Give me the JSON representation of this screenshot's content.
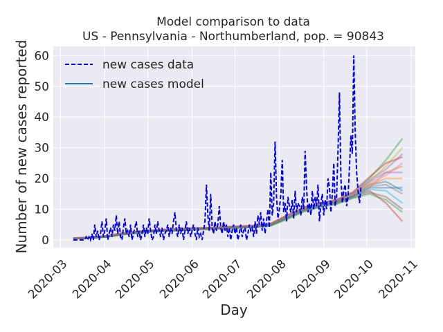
{
  "chart_data": {
    "type": "line",
    "title_line1": "Model comparison to data",
    "title_line2": "US - Pennsylvania - Northumberland, pop. = 90843",
    "xlabel": "Day",
    "ylabel": "Number of new cases reported",
    "x_tick_labels": [
      "2020-03",
      "2020-04",
      "2020-05",
      "2020-06",
      "2020-07",
      "2020-08",
      "2020-09",
      "2020-10",
      "2020-11"
    ],
    "y_ticks": [
      0,
      10,
      20,
      30,
      40,
      50,
      60
    ],
    "xlim": [
      "2020-02-25",
      "2020-11-04"
    ],
    "ylim": [
      -2.5,
      63
    ],
    "grid": true,
    "legend_position": "top-left",
    "legend": [
      {
        "label": "new cases data",
        "style": "dashed",
        "color": "#0000ee"
      },
      {
        "label": "new cases model",
        "style": "solid",
        "color": "#1f77b4"
      }
    ],
    "data_series": {
      "name": "new cases data",
      "start_date": "2020-03-10",
      "values": [
        0,
        0,
        0,
        0,
        0,
        0,
        0,
        0,
        0,
        1,
        0,
        1,
        0,
        2,
        0,
        5,
        1,
        3,
        0,
        2,
        6,
        1,
        3,
        7,
        0,
        2,
        4,
        1,
        5,
        3,
        8,
        2,
        6,
        1,
        0,
        4,
        7,
        2,
        3,
        1,
        5,
        0,
        2,
        4,
        6,
        1,
        3,
        0,
        2,
        5,
        1,
        4,
        2,
        7,
        3,
        0,
        1,
        5,
        2,
        6,
        3,
        1,
        4,
        0,
        2,
        3,
        5,
        1,
        4,
        2,
        6,
        9,
        3,
        1,
        5,
        2,
        4,
        0,
        3,
        6,
        2,
        4,
        1,
        3,
        5,
        2,
        0,
        4,
        1,
        2,
        0,
        3,
        6,
        18,
        8,
        3,
        15,
        4,
        2,
        6,
        3,
        5,
        11,
        4,
        2,
        6,
        3,
        5,
        1,
        4,
        0,
        3,
        5,
        2,
        4,
        0,
        2,
        5,
        1,
        3,
        4,
        0,
        2,
        5,
        3,
        4,
        1,
        6,
        2,
        8,
        5,
        9,
        3,
        7,
        2,
        6,
        10,
        4,
        22,
        8,
        12,
        32,
        14,
        7,
        10,
        15,
        26,
        9,
        12,
        6,
        14,
        11,
        9,
        13,
        7,
        16,
        9,
        12,
        11,
        8,
        14,
        10,
        29,
        17,
        9,
        12,
        8,
        16,
        10,
        14,
        11,
        18,
        6,
        12,
        15,
        8,
        13,
        10,
        20,
        17,
        9,
        15,
        25,
        11,
        14,
        30,
        48,
        20,
        12,
        16,
        18,
        11,
        14,
        24,
        34,
        28,
        60,
        35,
        22,
        16,
        12,
        17
      ]
    },
    "model_series": [
      {
        "color": "#1f77b4",
        "values": [
          0.5,
          0.7,
          1.2,
          2.0,
          2.6,
          3.0,
          3.3,
          3.6,
          3.8,
          4.0,
          4.2,
          4.4,
          5.0,
          7.5,
          10.0,
          11.5,
          12.5,
          14.5,
          18.0,
          19.0,
          16.0
        ]
      },
      {
        "color": "#ff7f0e",
        "values": [
          0.4,
          0.6,
          1.0,
          1.7,
          2.3,
          2.7,
          3.0,
          3.3,
          3.5,
          3.7,
          4.0,
          4.3,
          4.8,
          7.0,
          9.5,
          11.0,
          12.0,
          14.0,
          17.0,
          22.0,
          24.0
        ]
      },
      {
        "color": "#2ca02c",
        "values": [
          0.6,
          0.8,
          1.3,
          2.2,
          2.8,
          3.2,
          3.5,
          3.7,
          3.9,
          4.1,
          4.4,
          4.6,
          5.3,
          8.0,
          10.5,
          12.0,
          13.0,
          15.5,
          20.0,
          26.0,
          33.0
        ]
      },
      {
        "color": "#d62728",
        "values": [
          0.5,
          0.6,
          1.1,
          1.9,
          2.5,
          2.9,
          3.1,
          3.4,
          3.6,
          3.8,
          4.1,
          4.3,
          4.9,
          7.2,
          9.8,
          11.2,
          12.3,
          14.2,
          16.0,
          12.0,
          6.0
        ]
      },
      {
        "color": "#9467bd",
        "values": [
          0.5,
          0.7,
          1.2,
          2.1,
          2.7,
          3.1,
          3.4,
          3.6,
          3.8,
          4.0,
          4.3,
          4.5,
          5.1,
          7.8,
          10.2,
          11.8,
          12.8,
          15.0,
          19.5,
          23.0,
          28.0
        ]
      },
      {
        "color": "#8c564b",
        "values": [
          0.4,
          0.6,
          1.0,
          1.8,
          2.4,
          2.8,
          3.0,
          3.3,
          3.5,
          3.8,
          4.0,
          4.2,
          4.7,
          6.9,
          9.3,
          10.8,
          11.8,
          13.8,
          15.5,
          14.0,
          10.0
        ]
      },
      {
        "color": "#e377c2",
        "values": [
          0.6,
          0.8,
          1.3,
          2.1,
          2.7,
          3.1,
          3.4,
          3.6,
          3.9,
          4.1,
          4.3,
          4.6,
          5.2,
          7.9,
          10.3,
          11.9,
          12.9,
          15.2,
          18.5,
          21.0,
          25.0
        ]
      },
      {
        "color": "#7f7f7f",
        "values": [
          0.5,
          0.7,
          1.1,
          1.9,
          2.5,
          2.9,
          3.2,
          3.5,
          3.7,
          3.9,
          4.2,
          4.4,
          5.0,
          7.4,
          9.9,
          11.4,
          12.4,
          14.4,
          17.5,
          18.0,
          15.0
        ]
      },
      {
        "color": "#bcbd22",
        "values": [
          0.5,
          0.7,
          1.2,
          2.0,
          2.6,
          3.0,
          3.3,
          3.6,
          3.8,
          4.0,
          4.2,
          4.5,
          5.0,
          7.6,
          10.1,
          11.6,
          12.6,
          14.7,
          19.0,
          24.0,
          30.0
        ]
      },
      {
        "color": "#17becf",
        "values": [
          0.4,
          0.6,
          1.0,
          1.8,
          2.4,
          2.8,
          3.1,
          3.4,
          3.6,
          3.8,
          4.1,
          4.3,
          4.8,
          7.1,
          9.6,
          11.1,
          12.1,
          14.1,
          16.5,
          16.0,
          12.0
        ]
      },
      {
        "color": "#ff7f0e",
        "values": [
          0.5,
          0.7,
          1.2,
          2.0,
          2.6,
          3.0,
          3.3,
          3.6,
          3.8,
          4.0,
          4.3,
          4.5,
          5.1,
          7.7,
          10.2,
          11.7,
          12.7,
          14.8,
          18.0,
          20.0,
          20.0
        ]
      },
      {
        "color": "#1f77b4",
        "values": [
          0.5,
          0.6,
          1.1,
          1.9,
          2.5,
          2.9,
          3.2,
          3.5,
          3.7,
          3.9,
          4.1,
          4.3,
          4.9,
          7.3,
          9.7,
          11.3,
          12.3,
          14.3,
          17.0,
          17.0,
          17.0
        ]
      },
      {
        "color": "#d62728",
        "values": [
          0.6,
          0.8,
          1.3,
          2.2,
          2.8,
          3.2,
          3.5,
          3.8,
          4.0,
          4.2,
          4.4,
          4.7,
          5.3,
          8.1,
          10.6,
          12.1,
          13.1,
          15.6,
          20.5,
          25.0,
          27.0
        ]
      },
      {
        "color": "#2ca02c",
        "values": [
          0.4,
          0.6,
          1.0,
          1.7,
          2.3,
          2.7,
          3.0,
          3.2,
          3.4,
          3.7,
          3.9,
          4.1,
          4.6,
          6.8,
          9.2,
          10.7,
          11.7,
          13.6,
          15.0,
          13.0,
          9.0
        ]
      },
      {
        "color": "#9467bd",
        "values": [
          0.5,
          0.7,
          1.2,
          2.1,
          2.7,
          3.1,
          3.4,
          3.7,
          3.9,
          4.1,
          4.3,
          4.6,
          5.2,
          7.9,
          10.4,
          11.9,
          12.9,
          15.1,
          19.0,
          22.0,
          22.0
        ]
      }
    ]
  }
}
